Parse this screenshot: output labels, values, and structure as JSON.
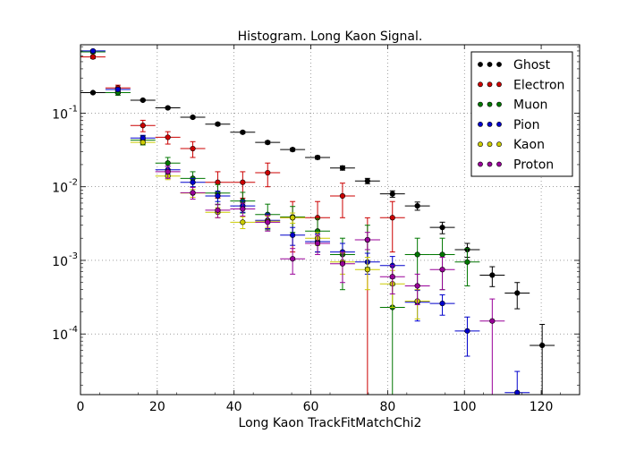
{
  "chart_data": {
    "type": "scatter",
    "title": "Histogram. Long Kaon Signal.",
    "xlabel": "Long Kaon TrackFitMatchChi2",
    "ylabel": "",
    "xlim": [
      0,
      130
    ],
    "ylim": [
      1.5e-05,
      0.85
    ],
    "yscale": "log",
    "grid": true,
    "legend_position": "top-right",
    "x_ticks": [
      0,
      20,
      40,
      60,
      80,
      100,
      120
    ],
    "x_tick_labels": [
      "0",
      "20",
      "40",
      "60",
      "80",
      "100",
      "120"
    ],
    "y_ticks": [
      0.0001,
      0.001,
      0.01,
      0.1
    ],
    "y_tick_labels": [
      {
        "base": "10",
        "exp": "-4"
      },
      {
        "base": "10",
        "exp": "-3"
      },
      {
        "base": "10",
        "exp": "-2"
      },
      {
        "base": "10",
        "exp": "-1"
      }
    ],
    "bin_half_width": 3.25,
    "series": [
      {
        "name": "Ghost",
        "color": "#000000",
        "points": [
          {
            "x": 3.25,
            "y": 0.19,
            "yerr": 0.005
          },
          {
            "x": 9.75,
            "y": 0.19,
            "yerr": 0.005
          },
          {
            "x": 16.25,
            "y": 0.15,
            "yerr": 0.004
          },
          {
            "x": 22.75,
            "y": 0.118,
            "yerr": 0.004
          },
          {
            "x": 29.25,
            "y": 0.088,
            "yerr": 0.003
          },
          {
            "x": 35.75,
            "y": 0.071,
            "yerr": 0.003
          },
          {
            "x": 42.25,
            "y": 0.055,
            "yerr": 0.002
          },
          {
            "x": 48.75,
            "y": 0.04,
            "yerr": 0.0018
          },
          {
            "x": 55.25,
            "y": 0.032,
            "yerr": 0.0015
          },
          {
            "x": 61.75,
            "y": 0.025,
            "yerr": 0.0013
          },
          {
            "x": 68.25,
            "y": 0.018,
            "yerr": 0.0012
          },
          {
            "x": 74.75,
            "y": 0.012,
            "yerr": 0.001
          },
          {
            "x": 81.25,
            "y": 0.008,
            "yerr": 0.0008
          },
          {
            "x": 87.75,
            "y": 0.0055,
            "yerr": 0.0007
          },
          {
            "x": 94.25,
            "y": 0.0028,
            "yerr": 0.0005
          },
          {
            "x": 100.75,
            "y": 0.0014,
            "yerr": 0.0003
          },
          {
            "x": 107.25,
            "y": 0.00063,
            "yerr": 0.00019
          },
          {
            "x": 113.75,
            "y": 0.00036,
            "yerr": 0.00014
          },
          {
            "x": 120.25,
            "y": 7e-05,
            "yerr": 6.5e-05
          }
        ]
      },
      {
        "name": "Electron",
        "color": "#cc0000",
        "points": [
          {
            "x": 3.25,
            "y": 0.58,
            "yerr": 0.03
          },
          {
            "x": 9.75,
            "y": 0.22,
            "yerr": 0.02
          },
          {
            "x": 16.25,
            "y": 0.068,
            "yerr": 0.012
          },
          {
            "x": 22.75,
            "y": 0.047,
            "yerr": 0.009
          },
          {
            "x": 29.25,
            "y": 0.033,
            "yerr": 0.008
          },
          {
            "x": 35.75,
            "y": 0.0115,
            "yerr": 0.0045
          },
          {
            "x": 42.25,
            "y": 0.0115,
            "yerr": 0.0045
          },
          {
            "x": 48.75,
            "y": 0.0155,
            "yerr": 0.0055
          },
          {
            "x": 55.25,
            "y": 0.0038,
            "yerr": 0.0025
          },
          {
            "x": 61.75,
            "y": 0.0038,
            "yerr": 0.0025
          },
          {
            "x": 68.25,
            "y": 0.0075,
            "yerr": 0.0037
          },
          {
            "x": 74.75,
            "y": 0.0019,
            "yerr": 0.00189
          },
          {
            "x": 81.25,
            "y": 0.0038,
            "yerr": 0.0025
          }
        ]
      },
      {
        "name": "Muon",
        "color": "#007700",
        "points": [
          {
            "x": 3.25,
            "y": 0.68,
            "yerr": 0.03
          },
          {
            "x": 9.75,
            "y": 0.19,
            "yerr": 0.015
          },
          {
            "x": 16.25,
            "y": 0.043,
            "yerr": 0.006
          },
          {
            "x": 22.75,
            "y": 0.021,
            "yerr": 0.004
          },
          {
            "x": 29.25,
            "y": 0.013,
            "yerr": 0.003
          },
          {
            "x": 35.75,
            "y": 0.0082,
            "yerr": 0.0025
          },
          {
            "x": 42.25,
            "y": 0.0064,
            "yerr": 0.002
          },
          {
            "x": 48.75,
            "y": 0.0042,
            "yerr": 0.0016
          },
          {
            "x": 55.25,
            "y": 0.0039,
            "yerr": 0.0015
          },
          {
            "x": 61.75,
            "y": 0.0025,
            "yerr": 0.0012
          },
          {
            "x": 68.25,
            "y": 0.0012,
            "yerr": 0.0008
          },
          {
            "x": 74.75,
            "y": 0.0019,
            "yerr": 0.0011
          },
          {
            "x": 81.25,
            "y": 0.00023,
            "yerr": 0.000229
          },
          {
            "x": 87.75,
            "y": 0.0012,
            "yerr": 0.0008
          },
          {
            "x": 94.25,
            "y": 0.0012,
            "yerr": 0.0008
          },
          {
            "x": 100.75,
            "y": 0.00095,
            "yerr": 0.0005
          }
        ]
      },
      {
        "name": "Pion",
        "color": "#0000cc",
        "points": [
          {
            "x": 3.25,
            "y": 0.7,
            "yerr": 0.02
          },
          {
            "x": 9.75,
            "y": 0.21,
            "yerr": 0.01
          },
          {
            "x": 16.25,
            "y": 0.046,
            "yerr": 0.004
          },
          {
            "x": 22.75,
            "y": 0.017,
            "yerr": 0.002
          },
          {
            "x": 29.25,
            "y": 0.0115,
            "yerr": 0.0015
          },
          {
            "x": 35.75,
            "y": 0.0075,
            "yerr": 0.0012
          },
          {
            "x": 42.25,
            "y": 0.0055,
            "yerr": 0.001
          },
          {
            "x": 48.75,
            "y": 0.0035,
            "yerr": 0.0008
          },
          {
            "x": 55.25,
            "y": 0.0022,
            "yerr": 0.0006
          },
          {
            "x": 61.75,
            "y": 0.0018,
            "yerr": 0.0005
          },
          {
            "x": 68.25,
            "y": 0.0013,
            "yerr": 0.0004
          },
          {
            "x": 74.75,
            "y": 0.00095,
            "yerr": 0.0003
          },
          {
            "x": 81.25,
            "y": 0.00085,
            "yerr": 0.00028
          },
          {
            "x": 87.75,
            "y": 0.00027,
            "yerr": 0.00012
          },
          {
            "x": 94.25,
            "y": 0.00026,
            "yerr": 8e-05
          },
          {
            "x": 100.75,
            "y": 0.00011,
            "yerr": 6e-05
          },
          {
            "x": 113.75,
            "y": 1.6e-05,
            "yerr": 1.5e-05
          }
        ]
      },
      {
        "name": "Kaon",
        "color": "#cccc00",
        "points": [
          {
            "x": 16.25,
            "y": 0.04,
            "yerr": 0.002
          },
          {
            "x": 22.75,
            "y": 0.014,
            "yerr": 0.0015
          },
          {
            "x": 29.25,
            "y": 0.0082,
            "yerr": 0.001
          },
          {
            "x": 35.75,
            "y": 0.0045,
            "yerr": 0.0007
          },
          {
            "x": 42.25,
            "y": 0.0033,
            "yerr": 0.0006
          },
          {
            "x": 48.75,
            "y": 0.0034,
            "yerr": 0.0006
          },
          {
            "x": 55.25,
            "y": 0.0038,
            "yerr": 0.0006
          },
          {
            "x": 61.75,
            "y": 0.002,
            "yerr": 0.0004
          },
          {
            "x": 68.25,
            "y": 0.00095,
            "yerr": 0.0003
          },
          {
            "x": 74.75,
            "y": 0.00075,
            "yerr": 0.00035
          },
          {
            "x": 81.25,
            "y": 0.00048,
            "yerr": 0.00025
          },
          {
            "x": 87.75,
            "y": 0.00028,
            "yerr": 0.00012
          }
        ]
      },
      {
        "name": "Proton",
        "color": "#990099",
        "points": [
          {
            "x": 22.75,
            "y": 0.016,
            "yerr": 0.003
          },
          {
            "x": 29.25,
            "y": 0.0083,
            "yerr": 0.0015
          },
          {
            "x": 35.75,
            "y": 0.0048,
            "yerr": 0.001
          },
          {
            "x": 42.25,
            "y": 0.005,
            "yerr": 0.001
          },
          {
            "x": 48.75,
            "y": 0.0033,
            "yerr": 0.0008
          },
          {
            "x": 55.25,
            "y": 0.00105,
            "yerr": 0.0004
          },
          {
            "x": 61.75,
            "y": 0.0017,
            "yerr": 0.0005
          },
          {
            "x": 68.25,
            "y": 0.0009,
            "yerr": 0.0004
          },
          {
            "x": 74.75,
            "y": 0.0019,
            "yerr": 0.0005
          },
          {
            "x": 81.25,
            "y": 0.0006,
            "yerr": 0.00025
          },
          {
            "x": 87.75,
            "y": 0.00045,
            "yerr": 0.0002
          },
          {
            "x": 94.25,
            "y": 0.00075,
            "yerr": 0.00035
          },
          {
            "x": 107.25,
            "y": 0.00015,
            "yerr": 0.000149
          }
        ]
      }
    ]
  }
}
